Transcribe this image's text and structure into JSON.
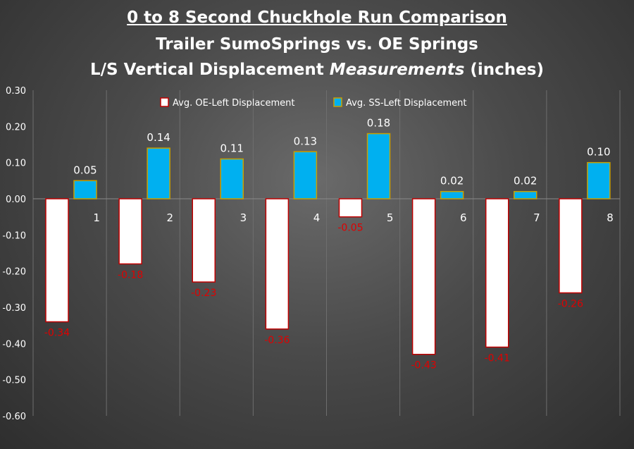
{
  "title": {
    "line1": "0 to 8 Second Chuckhole  Run Comparison",
    "line2": "Trailer SumoSprings vs. OE Springs",
    "line3_pre": "L/S Vertical Displacement ",
    "line3_em": "Measurements",
    "line3_post": " (inches)"
  },
  "colors": {
    "oe_fill": "#ffffff",
    "oe_border": "#c00000",
    "ss_fill": "#00b0f0",
    "ss_border": "#c9a000",
    "oe_label": "#e00000",
    "ss_label": "#ffffff",
    "axis_text": "#ffffff",
    "grid": "#6e6e6e"
  },
  "chart_data": {
    "type": "bar",
    "categories": [
      "1",
      "2",
      "3",
      "4",
      "5",
      "6",
      "7",
      "8"
    ],
    "series": [
      {
        "name": "Avg. OE-Left Displacement",
        "values": [
          -0.34,
          -0.18,
          -0.23,
          -0.36,
          -0.05,
          -0.43,
          -0.41,
          -0.26
        ]
      },
      {
        "name": "Avg. SS-Left Displacement",
        "values": [
          0.05,
          0.14,
          0.11,
          0.13,
          0.18,
          0.02,
          0.02,
          0.1
        ]
      }
    ],
    "data_labels": [
      [
        "-0.34",
        "-0.18",
        "-0.23",
        "-0.36",
        "-0.05",
        "-0.43",
        "-0.41",
        "-0.26"
      ],
      [
        "0.05",
        "0.14",
        "0.11",
        "0.13",
        "0.18",
        "0.02",
        "0.02",
        "0.10"
      ]
    ],
    "ylim": [
      -0.6,
      0.3
    ],
    "yticks": [
      0.3,
      0.2,
      0.1,
      0.0,
      -0.1,
      -0.2,
      -0.3,
      -0.4,
      -0.5,
      -0.6
    ],
    "ytick_labels": [
      "0.30",
      "0.20",
      "0.10",
      "0.00",
      "-0.10",
      "-0.20",
      "-0.30",
      "-0.40",
      "-0.50",
      "-0.60"
    ],
    "legend_position": "top-center",
    "grid": "vertical"
  }
}
